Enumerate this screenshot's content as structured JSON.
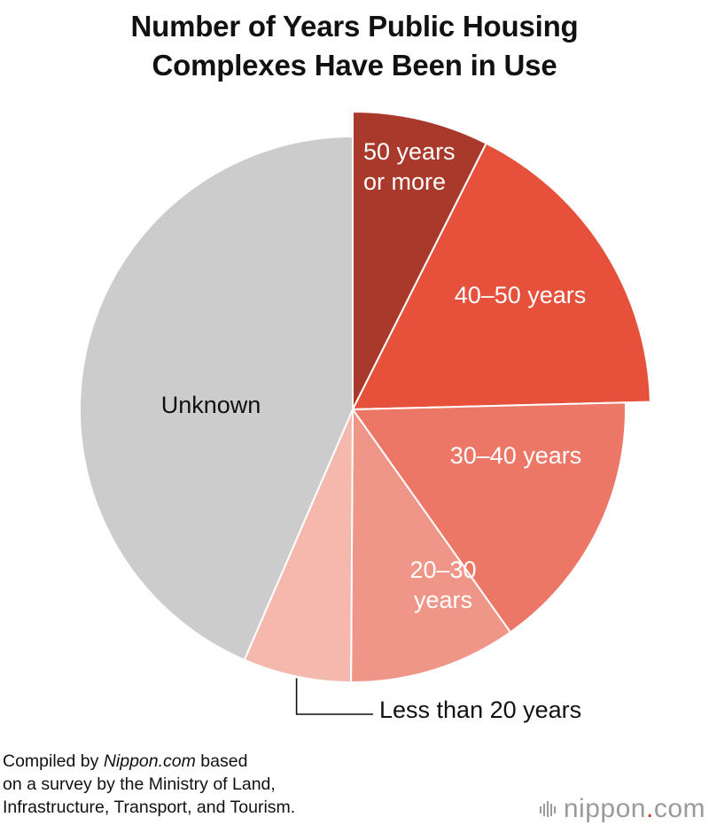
{
  "title": {
    "line1": "Number of Years Public Housing",
    "line2": "Complexes Have Been in Use"
  },
  "chart_data": {
    "type": "pie",
    "title": "Number of Years Public Housing Complexes Have Been in Use",
    "slices": [
      {
        "label": "50 years or more",
        "value": 7.4,
        "color": "#a93a2b",
        "exploded": true
      },
      {
        "label": "40–50 years",
        "value": 17.2,
        "color": "#e5513a",
        "exploded": true
      },
      {
        "label": "30–40 years",
        "value": 15.6,
        "color": "#ec7766"
      },
      {
        "label": "20–30 years",
        "value": 9.9,
        "color": "#f09688"
      },
      {
        "label": "Less than 20 years",
        "value": 6.4,
        "color": "#f5b8ad"
      },
      {
        "label": "Unknown",
        "value": 43.5,
        "color": "#cccccc"
      }
    ],
    "label_text": {
      "slice0": [
        "50 years",
        "or more"
      ],
      "slice1": [
        "40–50 years"
      ],
      "slice2": [
        "30–40 years"
      ],
      "slice3": [
        "20–30",
        "years"
      ],
      "slice4": [
        "Less than 20 years"
      ],
      "slice5": [
        "Unknown"
      ]
    },
    "label_colors": {
      "inside_light": "#ffffff",
      "inside_dark": "#111111",
      "outside": "#111111"
    }
  },
  "source": {
    "prefix": "Compiled by ",
    "site": "Nippon.com",
    "suffix": " based",
    "line2": "on a survey by the Ministry of Land,",
    "line3": "Infrastructure, Transport, and Tourism."
  },
  "brand": {
    "name": "nippon",
    "dot": ".",
    "tld": "com",
    "icon": "nippon-logo-icon"
  }
}
